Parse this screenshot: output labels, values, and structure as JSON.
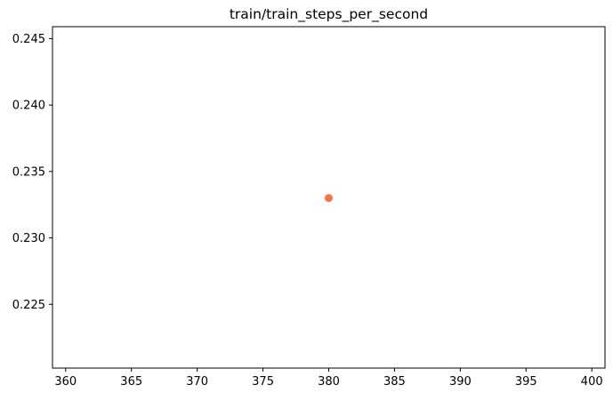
{
  "chart_data": {
    "type": "scatter",
    "title": "train/train_steps_per_second",
    "xlabel": "",
    "ylabel": "",
    "series": [
      {
        "color": "#f4754a",
        "points": [
          {
            "x": 380,
            "y": 0.233
          }
        ]
      }
    ],
    "xlim": [
      359,
      401
    ],
    "ylim": [
      0.2202,
      0.2459
    ],
    "xticks": [
      360,
      365,
      370,
      375,
      380,
      385,
      390,
      395,
      400
    ],
    "yticks": [
      0.225,
      0.23,
      0.235,
      0.24,
      0.245
    ],
    "xtick_labels": [
      "360",
      "365",
      "370",
      "375",
      "380",
      "385",
      "390",
      "395",
      "400"
    ],
    "ytick_labels": [
      "0.225",
      "0.230",
      "0.235",
      "0.240",
      "0.245"
    ],
    "grid": false,
    "legend": "none"
  }
}
